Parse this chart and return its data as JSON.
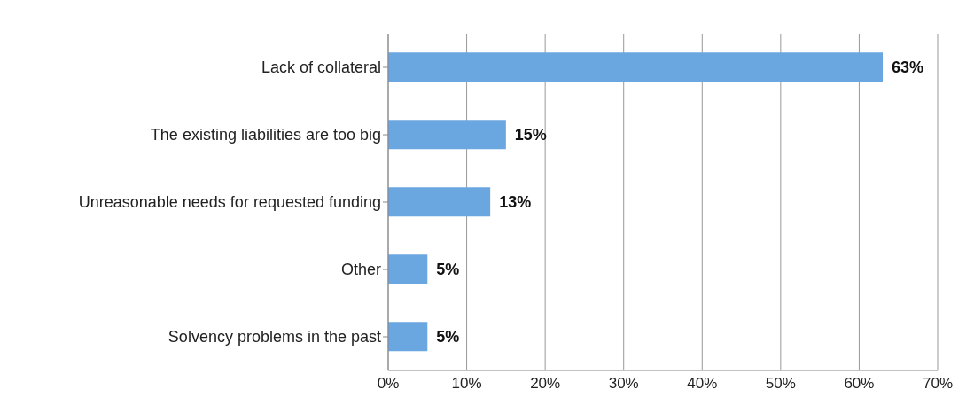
{
  "chart_data": {
    "type": "bar",
    "orientation": "horizontal",
    "categories": [
      "Lack of collateral",
      "The existing liabilities are too big",
      "Unreasonable needs for requested funding",
      "Other",
      "Solvency problems in the past"
    ],
    "values": [
      63,
      15,
      13,
      5,
      5
    ],
    "value_labels": [
      "63%",
      "15%",
      "13%",
      "5%",
      "5%"
    ],
    "color": "#6aa6e0",
    "xlim": [
      0,
      70
    ],
    "xticks": [
      {
        "value": 0,
        "label": "0%"
      },
      {
        "value": 10,
        "label": "10%"
      },
      {
        "value": 20,
        "label": "20%"
      },
      {
        "value": 30,
        "label": "30%"
      },
      {
        "value": 40,
        "label": "40%"
      },
      {
        "value": 50,
        "label": "50%"
      },
      {
        "value": 60,
        "label": "60%"
      },
      {
        "value": 70,
        "label": "70%"
      }
    ],
    "grid": "x",
    "legend": false
  }
}
